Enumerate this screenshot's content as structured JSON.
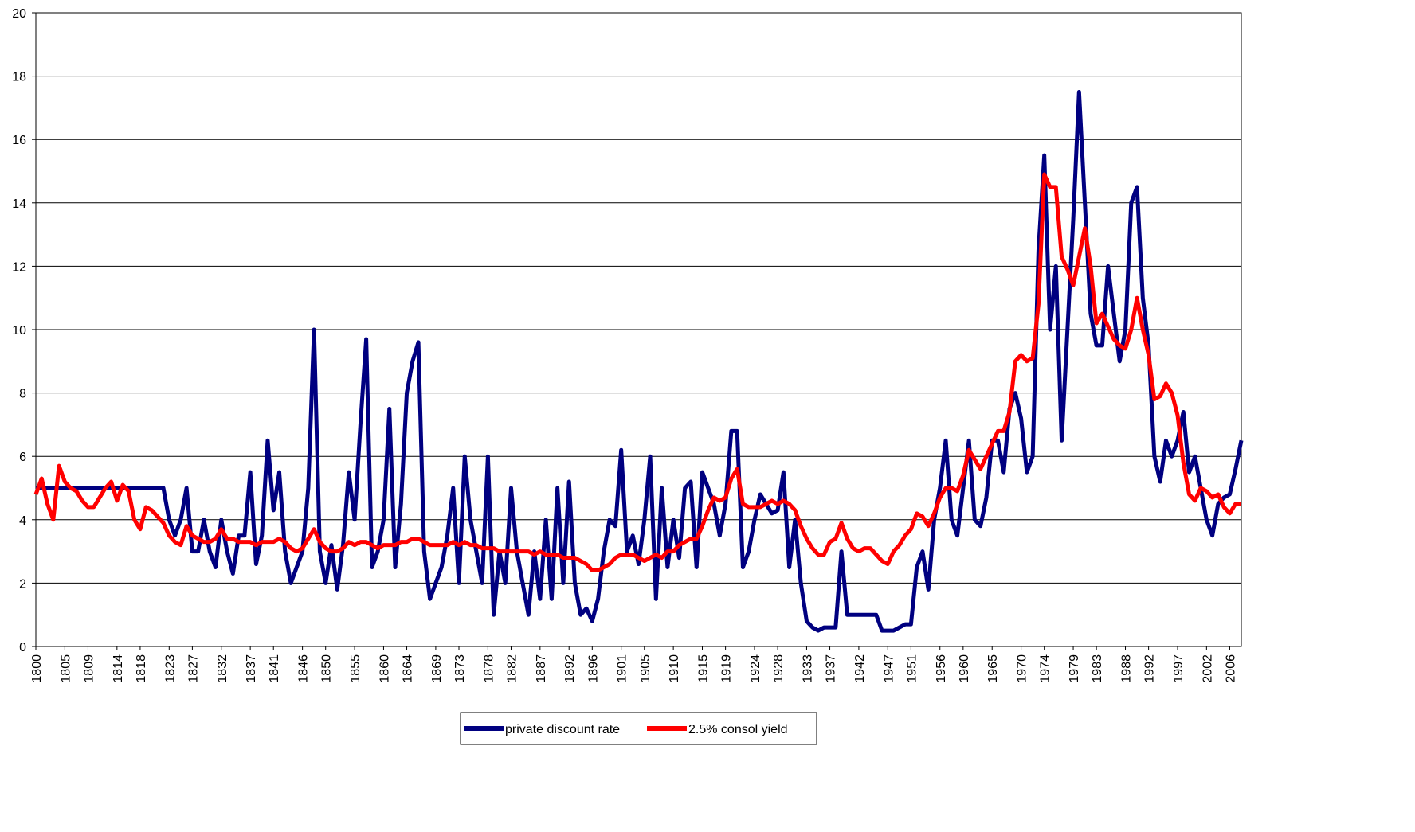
{
  "chart_data": {
    "type": "line",
    "x": [
      1800,
      1801,
      1802,
      1803,
      1804,
      1805,
      1806,
      1807,
      1808,
      1809,
      1810,
      1811,
      1812,
      1813,
      1814,
      1815,
      1816,
      1817,
      1818,
      1819,
      1820,
      1821,
      1822,
      1823,
      1824,
      1825,
      1826,
      1827,
      1828,
      1829,
      1830,
      1831,
      1832,
      1833,
      1834,
      1835,
      1836,
      1837,
      1838,
      1839,
      1840,
      1841,
      1842,
      1843,
      1844,
      1845,
      1846,
      1847,
      1848,
      1849,
      1850,
      1851,
      1852,
      1853,
      1854,
      1855,
      1856,
      1857,
      1858,
      1859,
      1860,
      1861,
      1862,
      1863,
      1864,
      1865,
      1866,
      1867,
      1868,
      1869,
      1870,
      1871,
      1872,
      1873,
      1874,
      1875,
      1876,
      1877,
      1878,
      1879,
      1880,
      1881,
      1882,
      1883,
      1884,
      1885,
      1886,
      1887,
      1888,
      1889,
      1890,
      1891,
      1892,
      1893,
      1894,
      1895,
      1896,
      1897,
      1898,
      1899,
      1900,
      1901,
      1902,
      1903,
      1904,
      1905,
      1906,
      1907,
      1908,
      1909,
      1910,
      1911,
      1912,
      1913,
      1914,
      1915,
      1916,
      1917,
      1918,
      1919,
      1920,
      1921,
      1922,
      1923,
      1924,
      1925,
      1926,
      1927,
      1928,
      1929,
      1930,
      1931,
      1932,
      1933,
      1934,
      1935,
      1936,
      1937,
      1938,
      1939,
      1940,
      1941,
      1942,
      1943,
      1944,
      1945,
      1946,
      1947,
      1948,
      1949,
      1950,
      1951,
      1952,
      1953,
      1954,
      1955,
      1956,
      1957,
      1958,
      1959,
      1960,
      1961,
      1962,
      1963,
      1964,
      1965,
      1966,
      1967,
      1968,
      1969,
      1970,
      1971,
      1972,
      1973,
      1974,
      1975,
      1976,
      1977,
      1978,
      1979,
      1980,
      1981,
      1982,
      1983,
      1984,
      1985,
      1986,
      1987,
      1988,
      1989,
      1990,
      1991,
      1992,
      1993,
      1994,
      1995,
      1996,
      1997,
      1998,
      1999,
      2000,
      2001,
      2002,
      2003,
      2004,
      2005,
      2006,
      2007,
      2008
    ],
    "series": [
      {
        "name": "private discount rate",
        "color": "#000080",
        "values": [
          5.0,
          5.0,
          5.0,
          5.0,
          5.0,
          5.0,
          5.0,
          5.0,
          5.0,
          5.0,
          5.0,
          5.0,
          5.0,
          5.0,
          5.0,
          5.0,
          5.0,
          5.0,
          5.0,
          5.0,
          5.0,
          5.0,
          5.0,
          4.0,
          3.5,
          4.0,
          5.0,
          3.0,
          3.0,
          4.0,
          3.0,
          2.5,
          4.0,
          3.0,
          2.3,
          3.5,
          3.5,
          5.5,
          2.6,
          3.5,
          6.5,
          4.3,
          5.5,
          3.0,
          2.0,
          2.5,
          3.0,
          5.0,
          10.0,
          3.0,
          2.0,
          3.2,
          1.8,
          3.2,
          5.5,
          4.0,
          7.0,
          9.7,
          2.5,
          3.0,
          4.0,
          7.5,
          2.5,
          4.5,
          8.0,
          9.0,
          9.6,
          3.0,
          1.5,
          2.0,
          2.5,
          3.5,
          5.0,
          2.0,
          6.0,
          4.0,
          3.0,
          2.0,
          6.0,
          1.0,
          3.0,
          2.0,
          5.0,
          3.0,
          2.0,
          1.0,
          3.0,
          1.5,
          4.0,
          1.5,
          5.0,
          2.0,
          5.2,
          2.0,
          1.0,
          1.2,
          0.8,
          1.5,
          3.0,
          4.0,
          3.8,
          6.2,
          3.0,
          3.5,
          2.6,
          4.0,
          6.0,
          1.5,
          5.0,
          2.5,
          4.0,
          2.8,
          5.0,
          5.2,
          2.5,
          5.5,
          5.0,
          4.5,
          3.5,
          4.5,
          6.8,
          6.8,
          2.5,
          3.0,
          4.0,
          4.8,
          4.5,
          4.2,
          4.3,
          5.5,
          2.5,
          4.0,
          2.0,
          0.8,
          0.6,
          0.5,
          0.6,
          0.6,
          0.6,
          3.0,
          1.0,
          1.0,
          1.0,
          1.0,
          1.0,
          1.0,
          0.5,
          0.5,
          0.5,
          0.6,
          0.7,
          0.7,
          2.5,
          3.0,
          1.8,
          4.0,
          5.0,
          6.5,
          4.0,
          3.5,
          5.0,
          6.5,
          4.0,
          3.8,
          4.7,
          6.5,
          6.5,
          5.5,
          7.5,
          8.0,
          7.2,
          5.5,
          6.0,
          12.5,
          15.5,
          10.0,
          12.0,
          6.5,
          10.0,
          13.5,
          17.5,
          14.0,
          10.5,
          9.5,
          9.5,
          12.0,
          10.5,
          9.0,
          10.0,
          14.0,
          14.5,
          11.0,
          9.5,
          6.0,
          5.2,
          6.5,
          6.0,
          6.5,
          7.4,
          5.5,
          6.0,
          5.0,
          4.0,
          3.5,
          4.5,
          4.7,
          4.8,
          5.6,
          6.5
        ]
      },
      {
        "name": "2.5% consol yield",
        "color": "#ff0000",
        "values": [
          4.8,
          5.3,
          4.5,
          4.0,
          5.7,
          5.2,
          5.0,
          4.9,
          4.6,
          4.4,
          4.4,
          4.7,
          5.0,
          5.2,
          4.6,
          5.1,
          4.9,
          4.0,
          3.7,
          4.4,
          4.3,
          4.1,
          3.9,
          3.5,
          3.3,
          3.2,
          3.8,
          3.5,
          3.4,
          3.3,
          3.3,
          3.4,
          3.7,
          3.4,
          3.4,
          3.3,
          3.3,
          3.3,
          3.2,
          3.3,
          3.3,
          3.3,
          3.4,
          3.3,
          3.1,
          3.0,
          3.1,
          3.4,
          3.7,
          3.3,
          3.1,
          3.0,
          3.0,
          3.1,
          3.3,
          3.2,
          3.3,
          3.3,
          3.2,
          3.1,
          3.2,
          3.2,
          3.2,
          3.3,
          3.3,
          3.4,
          3.4,
          3.3,
          3.2,
          3.2,
          3.2,
          3.2,
          3.3,
          3.2,
          3.3,
          3.2,
          3.2,
          3.1,
          3.1,
          3.1,
          3.0,
          3.0,
          3.0,
          3.0,
          3.0,
          3.0,
          2.9,
          3.0,
          2.9,
          2.9,
          2.9,
          2.8,
          2.8,
          2.8,
          2.7,
          2.6,
          2.4,
          2.4,
          2.5,
          2.6,
          2.8,
          2.9,
          2.9,
          2.9,
          2.8,
          2.7,
          2.8,
          2.9,
          2.8,
          3.0,
          3.0,
          3.2,
          3.3,
          3.4,
          3.4,
          3.8,
          4.3,
          4.7,
          4.6,
          4.7,
          5.3,
          5.6,
          4.5,
          4.4,
          4.4,
          4.4,
          4.5,
          4.6,
          4.5,
          4.6,
          4.5,
          4.3,
          3.8,
          3.4,
          3.1,
          2.9,
          2.9,
          3.3,
          3.4,
          3.9,
          3.4,
          3.1,
          3.0,
          3.1,
          3.1,
          2.9,
          2.7,
          2.6,
          3.0,
          3.2,
          3.5,
          3.7,
          4.2,
          4.1,
          3.8,
          4.2,
          4.7,
          5.0,
          5.0,
          4.9,
          5.4,
          6.2,
          5.9,
          5.6,
          6.0,
          6.4,
          6.8,
          6.8,
          7.4,
          9.0,
          9.2,
          9.0,
          9.1,
          10.8,
          14.9,
          14.5,
          14.5,
          12.3,
          11.9,
          11.4,
          12.3,
          13.2,
          12.0,
          10.2,
          10.5,
          10.1,
          9.7,
          9.5,
          9.4,
          10.0,
          11.0,
          10.0,
          9.2,
          7.8,
          7.9,
          8.3,
          8.0,
          7.3,
          5.8,
          4.8,
          4.6,
          5.0,
          4.9,
          4.7,
          4.8,
          4.4,
          4.2,
          4.5,
          4.5
        ]
      }
    ],
    "xlim": [
      1800,
      2008
    ],
    "xticks": [
      1800,
      1805,
      1809,
      1814,
      1818,
      1823,
      1827,
      1832,
      1837,
      1841,
      1846,
      1850,
      1855,
      1860,
      1864,
      1869,
      1873,
      1878,
      1882,
      1887,
      1892,
      1896,
      1901,
      1905,
      1910,
      1915,
      1919,
      1924,
      1928,
      1933,
      1937,
      1942,
      1947,
      1951,
      1956,
      1960,
      1965,
      1970,
      1974,
      1979,
      1983,
      1988,
      1992,
      1997,
      2002,
      2006
    ],
    "ylim": [
      0,
      20
    ],
    "yticks": [
      0,
      2,
      4,
      6,
      8,
      10,
      12,
      14,
      16,
      18,
      20
    ],
    "grid": true,
    "legend": "bottom"
  }
}
